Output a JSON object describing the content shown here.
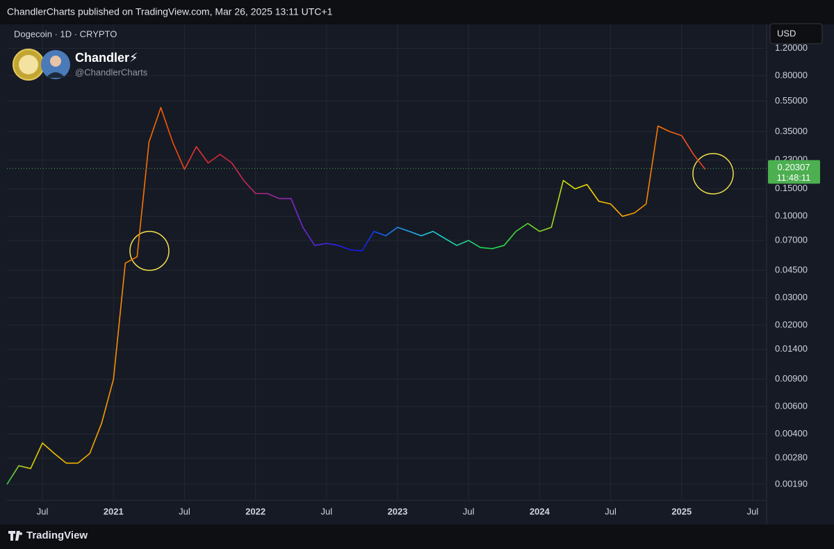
{
  "header": {
    "published": "ChandlerCharts published on TradingView.com, Mar 26, 2025 13:11 UTC+1",
    "symbol": "Dogecoin · 1D · CRYPTO",
    "author": "Chandler⚡",
    "handle": "@ChandlerCharts",
    "currency": "USD"
  },
  "footer": {
    "brand": "TradingView"
  },
  "chart_data": {
    "type": "line",
    "log_scale": true,
    "grid": true,
    "x": [
      "2020-04",
      "2020-05",
      "2020-06",
      "2020-07",
      "2020-08",
      "2020-09",
      "2020-10",
      "2020-11",
      "2020-12",
      "2021-01",
      "2021-02",
      "2021-03",
      "2021-04",
      "2021-05",
      "2021-06",
      "2021-07",
      "2021-08",
      "2021-09",
      "2021-10",
      "2021-11",
      "2021-12",
      "2022-01",
      "2022-02",
      "2022-03",
      "2022-04",
      "2022-05",
      "2022-06",
      "2022-07",
      "2022-08",
      "2022-09",
      "2022-10",
      "2022-11",
      "2022-12",
      "2023-01",
      "2023-02",
      "2023-03",
      "2023-04",
      "2023-05",
      "2023-06",
      "2023-07",
      "2023-08",
      "2023-09",
      "2023-10",
      "2023-11",
      "2023-12",
      "2024-01",
      "2024-02",
      "2024-03",
      "2024-04",
      "2024-05",
      "2024-06",
      "2024-07",
      "2024-08",
      "2024-09",
      "2024-10",
      "2024-11",
      "2024-12",
      "2025-01",
      "2025-02",
      "2025-03"
    ],
    "series": [
      {
        "values": [
          0.0019,
          0.0025,
          0.0024,
          0.0035,
          0.003,
          0.0026,
          0.0026,
          0.003,
          0.0047,
          0.009,
          0.05,
          0.055,
          0.3,
          0.5,
          0.3,
          0.2,
          0.28,
          0.22,
          0.25,
          0.22,
          0.17,
          0.14,
          0.14,
          0.13,
          0.13,
          0.085,
          0.065,
          0.067,
          0.065,
          0.061,
          0.06,
          0.08,
          0.075,
          0.085,
          0.08,
          0.075,
          0.08,
          0.072,
          0.065,
          0.07,
          0.063,
          0.062,
          0.065,
          0.08,
          0.09,
          0.08,
          0.085,
          0.17,
          0.15,
          0.16,
          0.125,
          0.12,
          0.1,
          0.105,
          0.12,
          0.38,
          0.35,
          0.33,
          0.25,
          0.2
        ],
        "colors": [
          "#2ecc40",
          "#9acd32",
          "#d4d000",
          "#e8c800",
          "#f0c000",
          "#f2b800",
          "#f4b000",
          "#f6a800",
          "#f7a000",
          "#f89400",
          "#f88800",
          "#f87c00",
          "#f86e00",
          "#f86000",
          "#f45000",
          "#f04020",
          "#e83030",
          "#e02830",
          "#d82838",
          "#d02840",
          "#c82850",
          "#b82870",
          "#a82890",
          "#9828a8",
          "#8828c0",
          "#7028d0",
          "#5828d8",
          "#4028e0",
          "#2820e8",
          "#1818f0",
          "#1020f0",
          "#1040f0",
          "#1868f0",
          "#1c90f0",
          "#20a8f0",
          "#20c0e8",
          "#20d0d8",
          "#20d8c0",
          "#20d8a0",
          "#20d880",
          "#20d860",
          "#20d848",
          "#30d840",
          "#40d838",
          "#60d830",
          "#80d828",
          "#a0d820",
          "#c0e010",
          "#e0e000",
          "#f0d800",
          "#f8c800",
          "#f8b800",
          "#f8a800",
          "#f89800",
          "#f88800",
          "#f87800",
          "#f86800",
          "#f85820",
          "#f04820",
          "#e84020"
        ]
      }
    ],
    "xlim": [
      "2020-04",
      "2025-08"
    ],
    "xticks": [
      {
        "value": "2020-07",
        "label": "Jul"
      },
      {
        "value": "2021-01",
        "label": "2021"
      },
      {
        "value": "2021-07",
        "label": "Jul"
      },
      {
        "value": "2022-01",
        "label": "2022"
      },
      {
        "value": "2022-07",
        "label": "Jul"
      },
      {
        "value": "2023-01",
        "label": "2023"
      },
      {
        "value": "2023-07",
        "label": "Jul"
      },
      {
        "value": "2024-01",
        "label": "2024"
      },
      {
        "value": "2024-07",
        "label": "Jul"
      },
      {
        "value": "2025-01",
        "label": "2025"
      },
      {
        "value": "2025-07",
        "label": "Jul"
      }
    ],
    "ylim": [
      0.00153,
      1.71
    ],
    "yticks": [
      {
        "value": 0.0019,
        "label": "0.00190"
      },
      {
        "value": 0.0028,
        "label": "0.00280"
      },
      {
        "value": 0.004,
        "label": "0.00400"
      },
      {
        "value": 0.006,
        "label": "0.00600"
      },
      {
        "value": 0.009,
        "label": "0.00900"
      },
      {
        "value": 0.014,
        "label": "0.01400"
      },
      {
        "value": 0.02,
        "label": "0.02000"
      },
      {
        "value": 0.03,
        "label": "0.03000"
      },
      {
        "value": 0.045,
        "label": "0.04500"
      },
      {
        "value": 0.07,
        "label": "0.07000"
      },
      {
        "value": 0.1,
        "label": "0.10000"
      },
      {
        "value": 0.15,
        "label": "0.15000"
      },
      {
        "value": 0.23,
        "label": "0.23000"
      },
      {
        "value": 0.35,
        "label": "0.35000"
      },
      {
        "value": 0.55,
        "label": "0.55000"
      },
      {
        "value": 0.8,
        "label": "0.80000"
      },
      {
        "value": 1.2,
        "label": "1.20000"
      }
    ],
    "last_price": 0.20307,
    "last_price_color": "#4caf50",
    "countdown": "11:48:11"
  }
}
